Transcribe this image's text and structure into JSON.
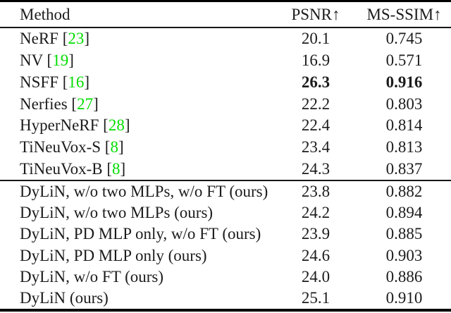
{
  "colors": {
    "citation_green": "#00dd00",
    "text": "#1c1c1c",
    "rule": "#000000"
  },
  "table": {
    "columns": [
      "Method",
      "PSNR↑",
      "MS-SSIM↑"
    ],
    "sections": [
      {
        "rows": [
          {
            "prefix": "NeRF [",
            "cite": "23",
            "suffix": "]",
            "psnr": "20.1",
            "ms_ssim": "0.745",
            "bold_values": false
          },
          {
            "prefix": "NV [",
            "cite": "19",
            "suffix": "]",
            "psnr": "16.9",
            "ms_ssim": "0.571",
            "bold_values": false
          },
          {
            "prefix": "NSFF [",
            "cite": "16",
            "suffix": "]",
            "psnr": "26.3",
            "ms_ssim": "0.916",
            "bold_values": true
          },
          {
            "prefix": "Nerfies [",
            "cite": "27",
            "suffix": "]",
            "psnr": "22.2",
            "ms_ssim": "0.803",
            "bold_values": false
          },
          {
            "prefix": "HyperNeRF [",
            "cite": "28",
            "suffix": "]",
            "psnr": "22.4",
            "ms_ssim": "0.814",
            "bold_values": false
          },
          {
            "prefix": "TiNeuVox-S [",
            "cite": "8",
            "suffix": "]",
            "psnr": "23.4",
            "ms_ssim": "0.813",
            "bold_values": false
          },
          {
            "prefix": "TiNeuVox-B [",
            "cite": "8",
            "suffix": "]",
            "psnr": "24.3",
            "ms_ssim": "0.837",
            "bold_values": false
          }
        ]
      },
      {
        "rows": [
          {
            "prefix": "DyLiN, w/o two MLPs, w/o FT (ours)",
            "cite": "",
            "suffix": "",
            "psnr": "23.8",
            "ms_ssim": "0.882",
            "bold_values": false
          },
          {
            "prefix": "DyLiN, w/o two MLPs (ours)",
            "cite": "",
            "suffix": "",
            "psnr": "24.2",
            "ms_ssim": "0.894",
            "bold_values": false
          },
          {
            "prefix": "DyLiN, PD MLP only, w/o FT (ours)",
            "cite": "",
            "suffix": "",
            "psnr": "23.9",
            "ms_ssim": "0.885",
            "bold_values": false
          },
          {
            "prefix": "DyLiN, PD MLP only (ours)",
            "cite": "",
            "suffix": "",
            "psnr": "24.6",
            "ms_ssim": "0.903",
            "bold_values": false
          },
          {
            "prefix": "DyLiN, w/o FT (ours)",
            "cite": "",
            "suffix": "",
            "psnr": "24.0",
            "ms_ssim": "0.886",
            "bold_values": false
          },
          {
            "prefix": "DyLiN (ours)",
            "cite": "",
            "suffix": "",
            "psnr": "25.1",
            "ms_ssim": "0.910",
            "bold_values": false
          }
        ]
      }
    ]
  }
}
